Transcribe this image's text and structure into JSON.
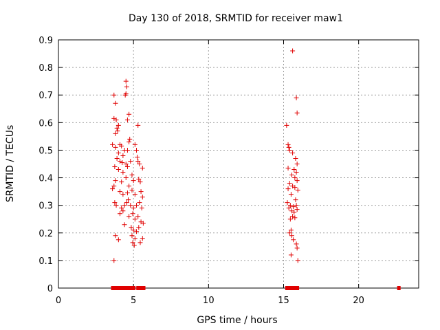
{
  "chart_data": {
    "type": "scatter",
    "title": "Day 130 of 2018, SRMTID for receiver maw1",
    "xlabel": "GPS time / hours",
    "ylabel": "SRMTID / TECUs",
    "xlim": [
      0,
      24
    ],
    "ylim": [
      0,
      0.9
    ],
    "xticks": [
      0,
      5,
      10,
      15,
      20
    ],
    "yticks": [
      0,
      0.1,
      0.2,
      0.3,
      0.4,
      0.5,
      0.6,
      0.7,
      0.8,
      0.9
    ],
    "grid": true,
    "marker_color": "#e00000",
    "series": [
      {
        "name": "SRMTID",
        "marker": "plus",
        "points": [
          [
            3.7,
            0.7
          ],
          [
            3.8,
            0.67
          ],
          [
            4.5,
            0.75
          ],
          [
            4.55,
            0.73
          ],
          [
            4.45,
            0.7
          ],
          [
            4.5,
            0.705
          ],
          [
            4.7,
            0.63
          ],
          [
            4.6,
            0.61
          ],
          [
            3.7,
            0.615
          ],
          [
            3.85,
            0.61
          ],
          [
            3.9,
            0.58
          ],
          [
            3.95,
            0.57
          ],
          [
            3.8,
            0.56
          ],
          [
            4.0,
            0.59
          ],
          [
            5.3,
            0.59
          ],
          [
            4.75,
            0.54
          ],
          [
            4.7,
            0.53
          ],
          [
            3.6,
            0.52
          ],
          [
            3.8,
            0.51
          ],
          [
            4.1,
            0.52
          ],
          [
            4.2,
            0.515
          ],
          [
            4.4,
            0.5
          ],
          [
            4.0,
            0.49
          ],
          [
            4.3,
            0.48
          ],
          [
            4.6,
            0.5
          ],
          [
            5.1,
            0.52
          ],
          [
            5.2,
            0.5
          ],
          [
            3.9,
            0.47
          ],
          [
            4.1,
            0.46
          ],
          [
            4.25,
            0.455
          ],
          [
            4.5,
            0.45
          ],
          [
            4.8,
            0.46
          ],
          [
            5.25,
            0.475
          ],
          [
            5.3,
            0.46
          ],
          [
            5.4,
            0.45
          ],
          [
            3.75,
            0.44
          ],
          [
            4.0,
            0.43
          ],
          [
            4.3,
            0.42
          ],
          [
            4.6,
            0.44
          ],
          [
            4.9,
            0.41
          ],
          [
            5.6,
            0.435
          ],
          [
            3.8,
            0.39
          ],
          [
            4.2,
            0.385
          ],
          [
            4.5,
            0.4
          ],
          [
            4.7,
            0.37
          ],
          [
            5.0,
            0.39
          ],
          [
            5.35,
            0.395
          ],
          [
            5.45,
            0.385
          ],
          [
            3.6,
            0.36
          ],
          [
            3.7,
            0.37
          ],
          [
            4.1,
            0.35
          ],
          [
            4.3,
            0.34
          ],
          [
            4.6,
            0.345
          ],
          [
            4.9,
            0.355
          ],
          [
            5.1,
            0.34
          ],
          [
            5.5,
            0.35
          ],
          [
            5.6,
            0.33
          ],
          [
            3.75,
            0.31
          ],
          [
            3.85,
            0.3
          ],
          [
            4.2,
            0.29
          ],
          [
            4.4,
            0.3
          ],
          [
            4.55,
            0.31
          ],
          [
            4.8,
            0.3
          ],
          [
            5.0,
            0.29
          ],
          [
            5.2,
            0.3
          ],
          [
            5.4,
            0.31
          ],
          [
            5.55,
            0.29
          ],
          [
            4.1,
            0.27
          ],
          [
            4.3,
            0.28
          ],
          [
            4.7,
            0.26
          ],
          [
            4.95,
            0.27
          ],
          [
            5.1,
            0.25
          ],
          [
            5.3,
            0.26
          ],
          [
            5.5,
            0.24
          ],
          [
            5.65,
            0.235
          ],
          [
            4.85,
            0.22
          ],
          [
            5.0,
            0.21
          ],
          [
            5.2,
            0.205
          ],
          [
            4.9,
            0.19
          ],
          [
            5.1,
            0.18
          ],
          [
            4.95,
            0.165
          ],
          [
            5.05,
            0.155
          ],
          [
            5.45,
            0.165
          ],
          [
            3.8,
            0.19
          ],
          [
            4.0,
            0.175
          ],
          [
            3.7,
            0.1
          ],
          [
            5.6,
            0.18
          ],
          [
            4.65,
            0.32
          ],
          [
            4.4,
            0.23
          ],
          [
            5.35,
            0.22
          ],
          [
            15.6,
            0.86
          ],
          [
            15.85,
            0.69
          ],
          [
            15.9,
            0.635
          ],
          [
            15.2,
            0.59
          ],
          [
            15.3,
            0.52
          ],
          [
            15.35,
            0.51
          ],
          [
            15.4,
            0.5
          ],
          [
            15.6,
            0.49
          ],
          [
            15.8,
            0.47
          ],
          [
            15.9,
            0.45
          ],
          [
            15.3,
            0.435
          ],
          [
            15.7,
            0.43
          ],
          [
            15.85,
            0.42
          ],
          [
            15.55,
            0.41
          ],
          [
            15.75,
            0.4
          ],
          [
            15.9,
            0.39
          ],
          [
            15.4,
            0.38
          ],
          [
            15.6,
            0.37
          ],
          [
            15.75,
            0.365
          ],
          [
            15.3,
            0.36
          ],
          [
            15.95,
            0.355
          ],
          [
            15.5,
            0.34
          ],
          [
            15.8,
            0.32
          ],
          [
            15.25,
            0.31
          ],
          [
            15.45,
            0.3
          ],
          [
            15.65,
            0.295
          ],
          [
            15.85,
            0.3
          ],
          [
            15.35,
            0.29
          ],
          [
            15.55,
            0.28
          ],
          [
            15.7,
            0.275
          ],
          [
            15.9,
            0.285
          ],
          [
            15.6,
            0.26
          ],
          [
            15.75,
            0.255
          ],
          [
            15.45,
            0.25
          ],
          [
            15.5,
            0.21
          ],
          [
            15.4,
            0.2
          ],
          [
            15.55,
            0.19
          ],
          [
            15.65,
            0.175
          ],
          [
            15.85,
            0.16
          ],
          [
            15.9,
            0.145
          ],
          [
            15.5,
            0.12
          ],
          [
            15.95,
            0.1
          ]
        ]
      },
      {
        "name": "zero",
        "marker": "square",
        "points": [
          [
            3.62,
            0
          ],
          [
            3.72,
            0
          ],
          [
            3.82,
            0
          ],
          [
            3.92,
            0
          ],
          [
            4.02,
            0
          ],
          [
            4.12,
            0
          ],
          [
            4.22,
            0
          ],
          [
            4.32,
            0
          ],
          [
            4.42,
            0
          ],
          [
            4.52,
            0
          ],
          [
            4.62,
            0
          ],
          [
            4.72,
            0
          ],
          [
            4.82,
            0
          ],
          [
            4.92,
            0
          ],
          [
            5.02,
            0
          ],
          [
            5.3,
            0
          ],
          [
            5.38,
            0
          ],
          [
            5.46,
            0
          ],
          [
            5.6,
            0
          ],
          [
            5.68,
            0
          ],
          [
            15.22,
            0
          ],
          [
            15.32,
            0
          ],
          [
            15.42,
            0
          ],
          [
            15.52,
            0
          ],
          [
            15.62,
            0
          ],
          [
            15.72,
            0
          ],
          [
            15.82,
            0
          ],
          [
            15.92,
            0
          ],
          [
            22.68,
            0
          ]
        ]
      }
    ]
  }
}
